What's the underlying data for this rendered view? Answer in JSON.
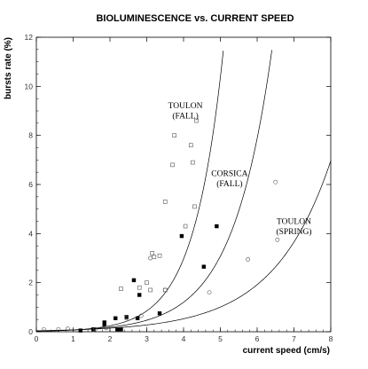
{
  "chart_data": {
    "type": "scatter",
    "title": "BIOLUMINESCENCE vs. CURRENT SPEED",
    "xlabel": "current speed (cm/s)",
    "ylabel": "bursts rate (%)",
    "xlim": [
      0,
      8
    ],
    "ylim": [
      0,
      12
    ],
    "xticks": [
      "0",
      "1",
      "2",
      "3",
      "4",
      "5",
      "6",
      "7",
      "8"
    ],
    "yticks": [
      "0",
      "2",
      "4",
      "6",
      "8",
      "10",
      "12"
    ],
    "grid": false,
    "series": [
      {
        "marker": "open-square",
        "points": [
          {
            "x": 2.3,
            "y": 1.75
          },
          {
            "x": 2.8,
            "y": 1.8
          },
          {
            "x": 3.0,
            "y": 2.0
          },
          {
            "x": 3.1,
            "y": 1.7
          },
          {
            "x": 3.15,
            "y": 3.2
          },
          {
            "x": 3.2,
            "y": 3.05
          },
          {
            "x": 3.35,
            "y": 3.1
          },
          {
            "x": 3.5,
            "y": 5.3
          },
          {
            "x": 3.5,
            "y": 1.7
          },
          {
            "x": 3.7,
            "y": 6.8
          },
          {
            "x": 3.75,
            "y": 8.0
          },
          {
            "x": 4.05,
            "y": 4.3
          },
          {
            "x": 4.2,
            "y": 7.6
          },
          {
            "x": 4.25,
            "y": 6.9
          },
          {
            "x": 4.3,
            "y": 5.1
          },
          {
            "x": 4.35,
            "y": 8.6
          }
        ]
      },
      {
        "marker": "filled-square",
        "points": [
          {
            "x": 1.2,
            "y": 0.05
          },
          {
            "x": 1.55,
            "y": 0.1
          },
          {
            "x": 1.85,
            "y": 0.3
          },
          {
            "x": 1.85,
            "y": 0.38
          },
          {
            "x": 2.15,
            "y": 0.55
          },
          {
            "x": 2.2,
            "y": 0.1
          },
          {
            "x": 2.3,
            "y": 0.1
          },
          {
            "x": 2.45,
            "y": 0.6
          },
          {
            "x": 2.65,
            "y": 2.1
          },
          {
            "x": 2.75,
            "y": 0.55
          },
          {
            "x": 2.8,
            "y": 1.5
          },
          {
            "x": 3.35,
            "y": 0.75
          },
          {
            "x": 3.95,
            "y": 3.9
          },
          {
            "x": 4.55,
            "y": 2.65
          },
          {
            "x": 4.9,
            "y": 4.3
          }
        ]
      },
      {
        "marker": "open-circle",
        "points": [
          {
            "x": 0.2,
            "y": 0.1
          },
          {
            "x": 0.6,
            "y": 0.1
          },
          {
            "x": 0.85,
            "y": 0.12
          },
          {
            "x": 1.6,
            "y": 0.1
          },
          {
            "x": 1.9,
            "y": 0.15
          },
          {
            "x": 2.45,
            "y": 0.55
          },
          {
            "x": 2.85,
            "y": 0.65
          },
          {
            "x": 3.1,
            "y": 3.0
          },
          {
            "x": 3.5,
            "y": 1.7
          },
          {
            "x": 4.7,
            "y": 1.6
          },
          {
            "x": 5.75,
            "y": 2.95
          },
          {
            "x": 6.5,
            "y": 6.1
          },
          {
            "x": 6.55,
            "y": 3.75
          }
        ]
      }
    ],
    "curves": [
      {
        "label_lines": [
          "TOULON",
          "(FALL)"
        ],
        "label_x": 4.05,
        "label_y": 9.1
      },
      {
        "label_lines": [
          "CORSICA",
          "(FALL)"
        ],
        "label_x": 5.25,
        "label_y": 6.35
      },
      {
        "label_lines": [
          "TOULON",
          "(SPRING)"
        ],
        "label_x": 7.0,
        "label_y": 4.4
      }
    ]
  }
}
